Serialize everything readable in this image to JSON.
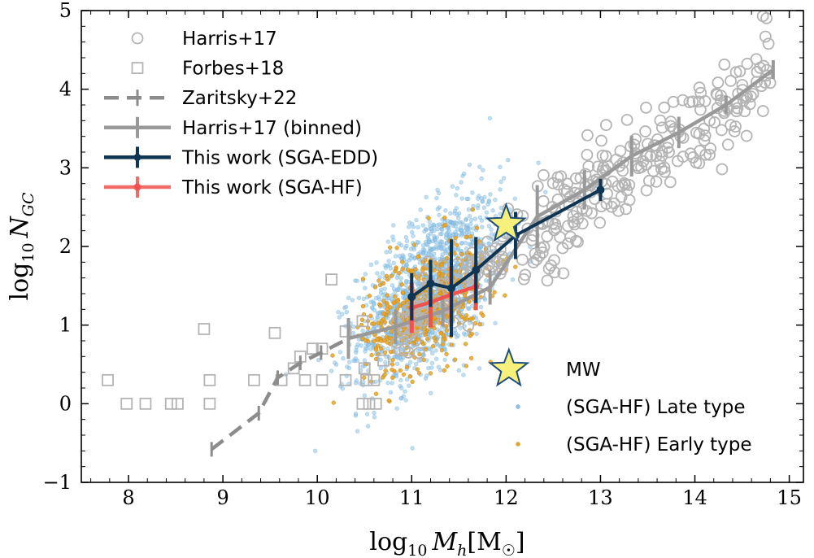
{
  "chart_data": {
    "type": "scatter",
    "xlabel": {
      "prefix": "log",
      "sub": "10",
      "var": "M",
      "varsub": "h",
      "unit": "[M",
      "unitsym": "☉",
      "close": "]"
    },
    "ylabel": {
      "prefix": "log",
      "sub": "10",
      "var": "N",
      "varsub": "GC"
    },
    "xlim": [
      7.5,
      15.15
    ],
    "ylim": [
      -1,
      5
    ],
    "xticks": [
      8,
      9,
      10,
      11,
      12,
      13,
      14,
      15
    ],
    "xtick_labels": [
      "8",
      "9",
      "10",
      "11",
      "12",
      "13",
      "14",
      "15"
    ],
    "yticks": [
      -1,
      0,
      1,
      2,
      3,
      4,
      5
    ],
    "ytick_labels": [
      "−1",
      "0",
      "1",
      "2",
      "3",
      "4",
      "5"
    ],
    "legend_top": [
      {
        "label": "Harris+17",
        "marker": "circle"
      },
      {
        "label": "Forbes+18",
        "marker": "square"
      },
      {
        "label": "Zaritsky+22",
        "marker": "dashed-line"
      },
      {
        "label": "Harris+17 (binned)",
        "marker": "gray-errorline"
      },
      {
        "label": "This work (SGA-EDD)",
        "marker": "navy-errorline"
      },
      {
        "label": "This work (SGA-HF)",
        "marker": "red-errorline"
      }
    ],
    "legend_bottom": [
      {
        "label": "MW",
        "marker": "star"
      },
      {
        "label": "(SGA-HF) Late type",
        "marker": "blue-dot"
      },
      {
        "label": "(SGA-HF) Early type",
        "marker": "orange-dot"
      }
    ],
    "colors": {
      "harris": "#b4b4b4",
      "forbes": "#b4b4b4",
      "zaritsky": "#8c8c8c",
      "harris_binned": "#999999",
      "edd": "#0e3553",
      "hf": "#f0524f",
      "late": "#8fc3e6",
      "early": "#e8a523",
      "star": "#f7f07a"
    },
    "series": [
      {
        "name": "Zaritsky+22",
        "x": [
          8.88,
          9.38,
          9.58,
          9.82,
          10.04,
          10.33
        ],
        "y": [
          -0.58,
          -0.12,
          0.33,
          0.52,
          0.65,
          0.83
        ]
      },
      {
        "name": "Harris+17 (binned)",
        "x": [
          10.33,
          10.83,
          11.33,
          11.83,
          12.33,
          12.83,
          13.33,
          13.83,
          14.33,
          14.83
        ],
        "y": [
          0.83,
          0.98,
          1.18,
          1.48,
          2.38,
          2.72,
          3.15,
          3.45,
          3.8,
          4.25
        ],
        "yerr": [
          0.26,
          0.22,
          0.2,
          0.22,
          0.4,
          0.25,
          0.26,
          0.2,
          0.12,
          0.12
        ]
      },
      {
        "name": "This work (SGA-EDD)",
        "x": [
          11.0,
          11.2,
          11.42,
          11.68,
          12.1,
          13.0
        ],
        "y": [
          1.36,
          1.53,
          1.47,
          1.7,
          2.14,
          2.72
        ],
        "yerr": [
          0.3,
          0.3,
          0.62,
          0.42,
          0.3,
          0.14
        ]
      },
      {
        "name": "This work (SGA-HF)",
        "x": [
          11.0,
          11.2,
          11.42,
          11.68
        ],
        "y": [
          1.22,
          1.29,
          1.39,
          1.49
        ],
        "yerr": [
          0.32,
          0.32,
          0.36,
          0.3
        ]
      },
      {
        "name": "Forbes+18",
        "x": [
          7.78,
          7.98,
          8.18,
          8.45,
          8.52,
          8.86,
          8.86,
          8.8,
          9.33,
          9.55,
          9.62,
          9.75,
          9.82,
          9.87,
          9.95,
          10.05,
          10.05,
          10.3,
          10.48,
          10.5,
          10.52,
          10.55,
          10.6,
          10.62,
          10.7,
          10.15,
          10.3,
          10.48
        ],
        "y": [
          0.3,
          0.0,
          0.0,
          0.0,
          0.0,
          0.0,
          0.3,
          0.95,
          0.3,
          0.9,
          0.3,
          0.45,
          0.6,
          0.3,
          0.7,
          0.3,
          0.7,
          0.3,
          0.0,
          0.45,
          0.3,
          0.0,
          0.3,
          0.0,
          0.55,
          1.58,
          0.92,
          1.05
        ]
      },
      {
        "name": "MW",
        "x": [
          12.0,
          12.03
        ],
        "y": [
          2.28,
          0.44
        ]
      }
    ]
  }
}
